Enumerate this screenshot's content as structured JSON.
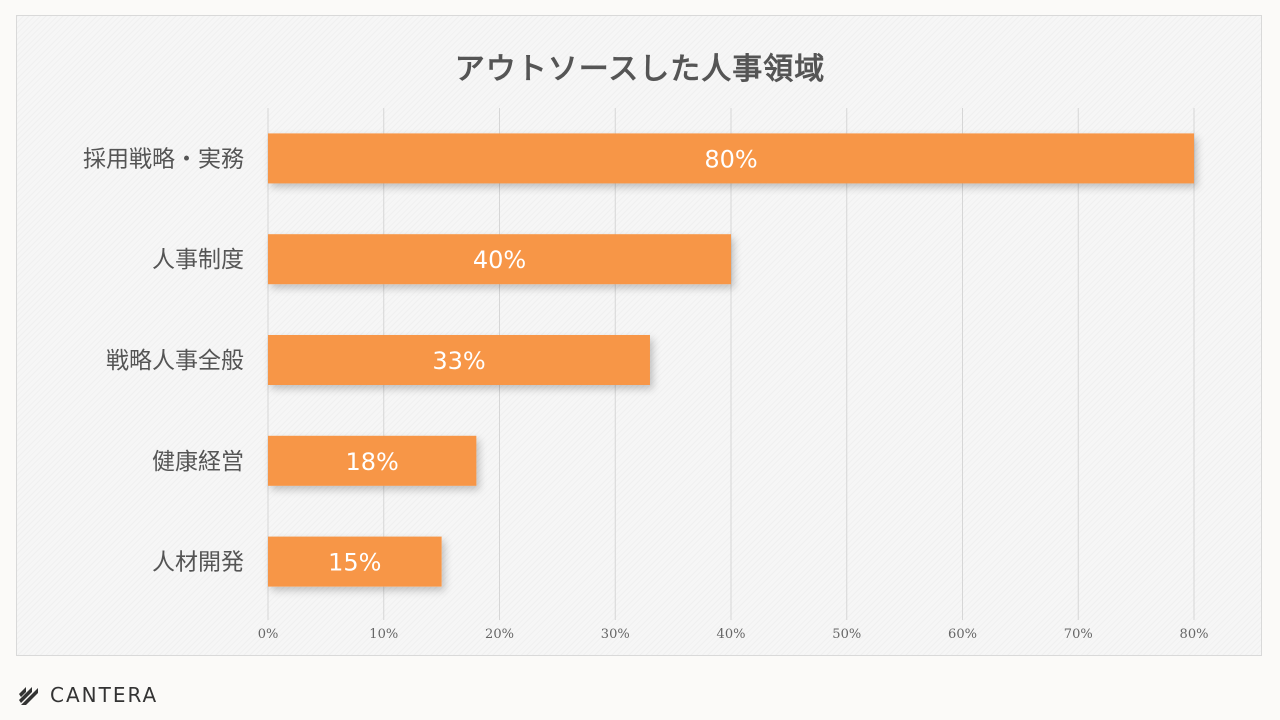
{
  "chart_data": {
    "type": "bar",
    "orientation": "horizontal",
    "title": "アウトソースした人事領域",
    "categories": [
      "採用戦略・実務",
      "人事制度",
      "戦略人事全般",
      "健康経営",
      "人材開発"
    ],
    "values": [
      80,
      40,
      33,
      18,
      15
    ],
    "value_labels": [
      "80%",
      "40%",
      "33%",
      "18%",
      "15%"
    ],
    "xlim": [
      0,
      80
    ],
    "x_ticks": [
      0,
      10,
      20,
      30,
      40,
      50,
      60,
      70,
      80
    ],
    "x_tick_labels": [
      "0%",
      "10%",
      "20%",
      "30%",
      "40%",
      "50%",
      "60%",
      "70%",
      "80%"
    ],
    "grid": true,
    "bar_color": "#f79646"
  },
  "branding": {
    "logo_text": "CANTERA"
  }
}
